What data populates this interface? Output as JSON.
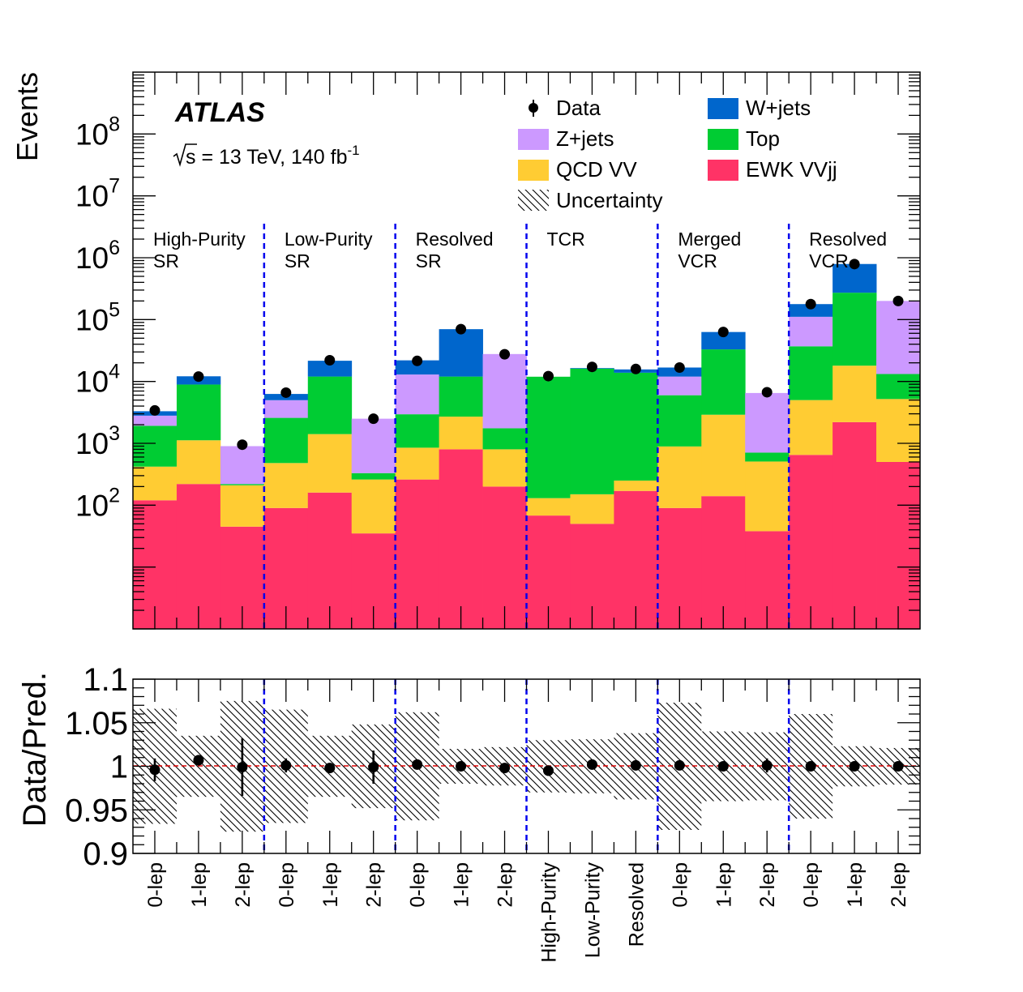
{
  "chart_data": {
    "type": "bar",
    "subtype": "stacked-histogram-with-ratio",
    "experiment": "ATLAS",
    "sqrt_s_prefix": "s",
    "energy_label": " = 13 TeV, 140 fb",
    "lumi_exponent": "-1",
    "ylabel": "Events",
    "ratio_ylabel": "Data/Pred.",
    "ylim": [
      1,
      1000000000
    ],
    "y_ticks": [
      {
        "mant": "10",
        "exp": "2",
        "v": 100
      },
      {
        "mant": "10",
        "exp": "3",
        "v": 1000
      },
      {
        "mant": "10",
        "exp": "4",
        "v": 10000
      },
      {
        "mant": "10",
        "exp": "5",
        "v": 100000
      },
      {
        "mant": "10",
        "exp": "6",
        "v": 1000000
      },
      {
        "mant": "10",
        "exp": "7",
        "v": 10000000
      },
      {
        "mant": "10",
        "exp": "8",
        "v": 100000000
      }
    ],
    "ratio_ylim": [
      0.9,
      1.1
    ],
    "ratio_ticks": [
      {
        "label": "0.9",
        "v": 0.9
      },
      {
        "label": "0.95",
        "v": 0.95
      },
      {
        "label": "1",
        "v": 1.0
      },
      {
        "label": "1.05",
        "v": 1.05
      },
      {
        "label": "1.1",
        "v": 1.1
      }
    ],
    "categories": [
      "0-lep",
      "1-lep",
      "2-lep",
      "0-lep",
      "1-lep",
      "2-lep",
      "0-lep",
      "1-lep",
      "2-lep",
      "High-Purity",
      "Low-Purity",
      "Resolved",
      "0-lep",
      "1-lep",
      "2-lep",
      "0-lep",
      "1-lep",
      "2-lep"
    ],
    "regions": [
      {
        "line1": "High-Purity",
        "line2": "SR",
        "start": 0
      },
      {
        "line1": "Low-Purity",
        "line2": "SR",
        "start": 3
      },
      {
        "line1": "Resolved",
        "line2": "SR",
        "start": 6
      },
      {
        "line1": "TCR",
        "line2": "",
        "start": 9
      },
      {
        "line1": "Merged",
        "line2": "VCR",
        "start": 12
      },
      {
        "line1": "Resolved",
        "line2": "VCR",
        "start": 15
      }
    ],
    "series": [
      {
        "name": "EWK VVjj",
        "color": "#ff3366",
        "values": [
          120,
          220,
          45,
          90,
          160,
          35,
          260,
          800,
          200,
          68,
          50,
          170,
          90,
          140,
          38,
          650,
          2200,
          500
        ]
      },
      {
        "name": "QCD VV",
        "color": "#ffcc33",
        "values": [
          300,
          900,
          165,
          390,
          1250,
          225,
          590,
          1900,
          600,
          62,
          100,
          80,
          800,
          2760,
          470,
          4350,
          15800,
          4700
        ]
      },
      {
        "name": "Top",
        "color": "#00cc33",
        "values": [
          1500,
          7800,
          10,
          2100,
          10600,
          70,
          2100,
          9300,
          950,
          11800,
          16000,
          13600,
          5100,
          30100,
          200,
          32000,
          254000,
          8000
        ]
      },
      {
        "name": "Z+jets",
        "color": "#cc99ff",
        "values": [
          880,
          0,
          680,
          2400,
          0,
          2170,
          10000,
          0,
          26000,
          0,
          0,
          0,
          6000,
          0,
          5800,
          74000,
          0,
          187000
        ]
      },
      {
        "name": "W+jets",
        "color": "#0066cc",
        "values": [
          500,
          3200,
          0,
          1300,
          9600,
          0,
          9000,
          58000,
          0,
          0,
          350,
          1800,
          4800,
          30000,
          0,
          67000,
          520000,
          0
        ]
      }
    ],
    "data": [
      3400,
      12000,
      950,
      6600,
      22000,
      2500,
      21500,
      70000,
      27500,
      12200,
      17200,
      15900,
      16800,
      63000,
      6700,
      178000,
      790000,
      200000
    ],
    "ratio": [
      0.996,
      1.007,
      0.999,
      1.001,
      0.998,
      0.999,
      1.002,
      1.0,
      0.998,
      0.995,
      1.002,
      1.001,
      1.001,
      1.0,
      1.001,
      1.0,
      1.0,
      1.0
    ],
    "ratio_err": [
      0.013,
      0.006,
      0.033,
      0.008,
      0.004,
      0.019,
      0.004,
      0.002,
      0.003,
      0.006,
      0.004,
      0.004,
      0.004,
      0.002,
      0.008,
      0.002,
      0.001,
      0.002
    ],
    "unc_band": [
      0.066,
      0.035,
      0.075,
      0.065,
      0.035,
      0.048,
      0.062,
      0.02,
      0.022,
      0.03,
      0.031,
      0.038,
      0.073,
      0.04,
      0.039,
      0.06,
      0.023,
      0.021
    ],
    "legend": [
      {
        "key": "data",
        "label": "Data"
      },
      {
        "key": "wjets",
        "label": "W+jets",
        "color": "#0066cc"
      },
      {
        "key": "zjets",
        "label": "Z+jets",
        "color": "#cc99ff"
      },
      {
        "key": "top",
        "label": "Top",
        "color": "#00cc33"
      },
      {
        "key": "qcdvv",
        "label": "QCD VV",
        "color": "#ffcc33"
      },
      {
        "key": "ewkvvjj",
        "label": "EWK VVjj",
        "color": "#ff3366"
      },
      {
        "key": "unc",
        "label": "Uncertainty"
      }
    ],
    "legend_position": "top-right",
    "region_divider_color": "#0000ee",
    "ratio_ref_color": "#dd0000"
  }
}
